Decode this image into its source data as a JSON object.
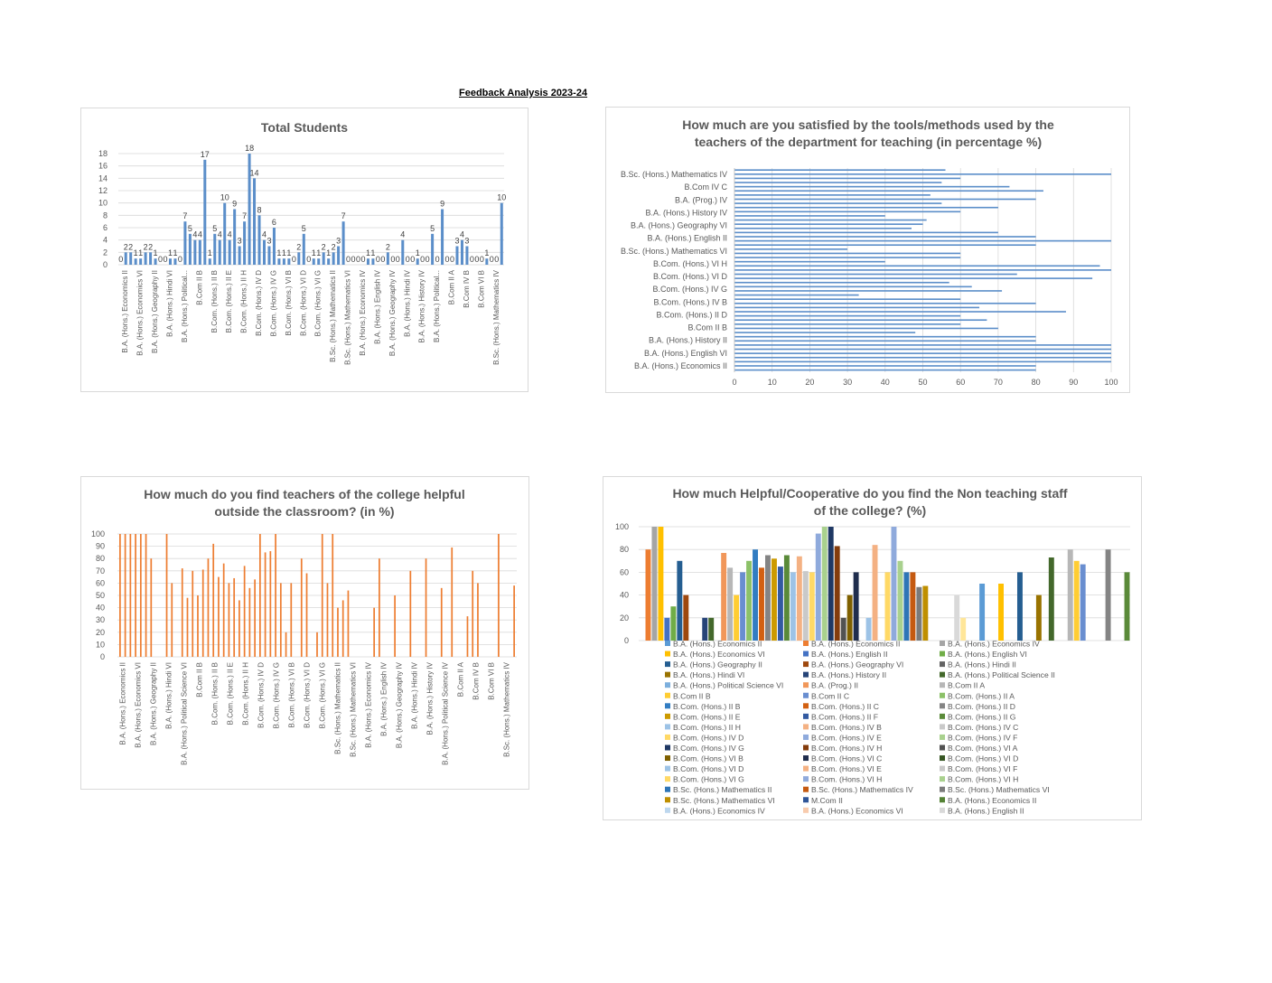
{
  "document_title": "Feedback Analysis 2023-24",
  "chart_data": [
    {
      "id": "total-students",
      "type": "bar",
      "title": "Total Students",
      "ylim": [
        0,
        18
      ],
      "yticks": [
        0,
        2,
        4,
        6,
        8,
        10,
        12,
        14,
        16,
        18
      ],
      "grid": true,
      "color": "#5b8ec9",
      "visible_category_labels": [
        "B.A. (Hons.) Economics II",
        "B.A. (Hons.) Economics VI",
        "B.A. (Hons.) Geography II",
        "B.A. (Hons.) Hindi VI",
        "B.A. (Hons.) Political...",
        "B.Com II B",
        "B.Com. (Hons.) II B",
        "B.Com. (Hons.) II E",
        "B.Com. (Hons.) II H",
        "B.Com. (Hons.) IV D",
        "B.Com. (Hons.) IV G",
        "B.Com. (Hons.) VI B",
        "B.Com. (Hons.) VI D",
        "B.Com. (Hons.) VI G",
        "B.Sc. (Hons.) Mathematics II",
        "B.Sc. (Hons.) Mathematics VI",
        "B.A. (Hons.) Economics IV",
        "B.A. (Hons.) English IV",
        "B.A. (Hons.) Geography IV",
        "B.A. (Hons.) Hindi IV",
        "B.A. (Hons.) History IV",
        "B.A. (Hons.) Political...",
        "B.Com II A",
        "B.Com IV B",
        "B.Com VI B",
        "B.Sc. (Hons.) Mathematics IV"
      ],
      "values": [
        0,
        2,
        2,
        1,
        1,
        2,
        2,
        1,
        0,
        0,
        1,
        1,
        0,
        7,
        5,
        4,
        4,
        17,
        1,
        5,
        4,
        10,
        4,
        9,
        3,
        7,
        18,
        14,
        8,
        4,
        3,
        6,
        1,
        1,
        1,
        0,
        2,
        5,
        0,
        1,
        1,
        2,
        1,
        2,
        3,
        7,
        0,
        0,
        0,
        0,
        1,
        1,
        0,
        0,
        2,
        0,
        0,
        4,
        0,
        0,
        1,
        0,
        0,
        5,
        0,
        9,
        0,
        0,
        3,
        4,
        3,
        0,
        0,
        0,
        1,
        0,
        0,
        10
      ]
    },
    {
      "id": "tools-methods",
      "type": "bar",
      "orientation": "horizontal",
      "title": "How much are you satisfied by the tools/methods used by the teachers of the department for teaching (in percentage %)",
      "title_lines": [
        "How much are you satisfied by the tools/methods used by the",
        "teachers of the department for teaching (in percentage %)"
      ],
      "xlim": [
        0,
        100
      ],
      "xticks": [
        0,
        10,
        20,
        30,
        40,
        50,
        60,
        70,
        80,
        90,
        100
      ],
      "grid": true,
      "color": "#5b8ec9",
      "visible_category_labels": [
        "B.Sc. (Hons.) Mathematics IV",
        "B.Com IV C",
        "B.A. (Prog.) IV",
        "B.A. (Hons.) History IV",
        "B.A. (Hons.) Geography VI",
        "B.A. (Hons.) English II",
        "B.Sc. (Hons.) Mathematics VI",
        "B.Com. (Hons.) VI H",
        "B.Com. (Hons.) VI D",
        "B.Com. (Hons.) IV G",
        "B.Com. (Hons.) IV B",
        "B.Com. (Hons.) II D",
        "B.Com II B",
        "B.A. (Hons.) History II",
        "B.A. (Hons.) English VI",
        "B.A. (Hons.) Economics II"
      ],
      "values_top_to_bottom": [
        56,
        100,
        60,
        55,
        73,
        82,
        52,
        80,
        55,
        70,
        60,
        40,
        51,
        50,
        47,
        70,
        80,
        100,
        80,
        30,
        60,
        60,
        40,
        97,
        100,
        75,
        95,
        57,
        63,
        71,
        33,
        60,
        80,
        65,
        88,
        60,
        67,
        60,
        70,
        48,
        80,
        80,
        100,
        100,
        100,
        100,
        100,
        80,
        80
      ]
    },
    {
      "id": "teachers-helpful",
      "type": "bar",
      "title": "How much do you find teachers of the college helpful outside the classroom? (in %)",
      "title_lines": [
        "How much do you find teachers of the college helpful",
        "outside the classroom?  (in %)"
      ],
      "ylim": [
        0,
        100
      ],
      "yticks": [
        0,
        10,
        20,
        30,
        40,
        50,
        60,
        70,
        80,
        90,
        100
      ],
      "grid": true,
      "color": "#ed7d31",
      "visible_category_labels": [
        "B.A. (Hons.) Economics II",
        "B.A. (Hons.) Economics VI",
        "B.A. (Hons.) Geography II",
        "B.A. (Hons.) Hindi VI",
        "B.A. (Hons.) Political Science VI",
        "B.Com II B",
        "B.Com. (Hons.) II B",
        "B.Com. (Hons.) II E",
        "B.Com. (Hons.) II H",
        "B.Com. (Hons.) IV D",
        "B.Com. (Hons.) IV G",
        "B.Com. (Hons.) VI B",
        "B.Com. (Hons.) VI D",
        "B.Com. (Hons.) VI G",
        "B.Sc. (Hons.) Mathematics II",
        "B.Sc. (Hons.) Mathematics VI",
        "B.A. (Hons.) Economics IV",
        "B.A. (Hons.) English IV",
        "B.A. (Hons.) Geography IV",
        "B.A. (Hons.) Hindi IV",
        "B.A. (Hons.) History IV",
        "B.A. (Hons.) Political Science IV",
        "B.Com II A",
        "B.Com IV B",
        "B.Com VI B",
        "B.Sc. (Hons.) Mathematics IV"
      ],
      "values": [
        100,
        100,
        100,
        100,
        100,
        100,
        80,
        0,
        0,
        100,
        60,
        0,
        72,
        48,
        70,
        50,
        71,
        80,
        92,
        65,
        76,
        60,
        64,
        46,
        74,
        56,
        63,
        100,
        85,
        86,
        100,
        60,
        20,
        60,
        0,
        80,
        68,
        0,
        20,
        100,
        60,
        100,
        40,
        46,
        54,
        0,
        0,
        0,
        0,
        40,
        80,
        0,
        0,
        50,
        0,
        0,
        70,
        0,
        0,
        80,
        0,
        0,
        56,
        0,
        89,
        0,
        0,
        33,
        70,
        60,
        0,
        0,
        0,
        100,
        0,
        0,
        58
      ]
    },
    {
      "id": "non-teaching-staff",
      "type": "bar",
      "title": "How much Helpful/Cooperative do you find the Non teaching staff of the college? (%)",
      "title_lines": [
        "How much Helpful/Cooperative do you find the Non teaching staff",
        "of the college? (%)"
      ],
      "ylim": [
        0,
        100
      ],
      "yticks": [
        0,
        20,
        40,
        60,
        80,
        100
      ],
      "grid": true,
      "legend_placement": "bottom",
      "series": [
        {
          "name": "B.A. (Hons.) Economics II",
          "color": "#5b9bd5",
          "value": 0
        },
        {
          "name": "B.A. (Hons.) Economics II",
          "color": "#ed7d31",
          "value": 80
        },
        {
          "name": "B.A. (Hons.) Economics IV",
          "color": "#a5a5a5",
          "value": 100
        },
        {
          "name": "B.A. (Hons.) Economics VI",
          "color": "#ffc000",
          "value": 100
        },
        {
          "name": "B.A. (Hons.) English II",
          "color": "#4472c4",
          "value": 20
        },
        {
          "name": "B.A. (Hons.) English VI",
          "color": "#70ad47",
          "value": 30
        },
        {
          "name": "B.A. (Hons.) Geography II",
          "color": "#255e91",
          "value": 70
        },
        {
          "name": "B.A. (Hons.) Geography VI",
          "color": "#9e480e",
          "value": 40
        },
        {
          "name": "B.A. (Hons.) Hindi II",
          "color": "#636363",
          "value": 0
        },
        {
          "name": "B.A. (Hons.) Hindi VI",
          "color": "#997300",
          "value": 0
        },
        {
          "name": "B.A. (Hons.) History II",
          "color": "#264478",
          "value": 20
        },
        {
          "name": "B.A. (Hons.) Political Science II",
          "color": "#43682b",
          "value": 20
        },
        {
          "name": "B.A. (Hons.) Political Science VI",
          "color": "#7cafdd",
          "value": 0
        },
        {
          "name": "B.A. (Prog.) II",
          "color": "#f1975a",
          "value": 77
        },
        {
          "name": "B.Com II A",
          "color": "#b7b7b7",
          "value": 64
        },
        {
          "name": "B.Com II B",
          "color": "#ffcd33",
          "value": 40
        },
        {
          "name": "B.Com II C",
          "color": "#698ed0",
          "value": 60
        },
        {
          "name": "B.Com. (Hons.) II A",
          "color": "#8cc168",
          "value": 70
        },
        {
          "name": "B.Com. (Hons.) II B",
          "color": "#327dc2",
          "value": 80
        },
        {
          "name": "B.Com. (Hons.) II C",
          "color": "#d26012",
          "value": 64
        },
        {
          "name": "B.Com. (Hons.) II D",
          "color": "#848484",
          "value": 75
        },
        {
          "name": "B.Com. (Hons.) II E",
          "color": "#cc9a00",
          "value": 72
        },
        {
          "name": "B.Com. (Hons.) II F",
          "color": "#335aa1",
          "value": 65
        },
        {
          "name": "B.Com. (Hons.) II G",
          "color": "#5a8a39",
          "value": 75
        },
        {
          "name": "B.Com. (Hons.) II H",
          "color": "#9dc3e6",
          "value": 60
        },
        {
          "name": "B.Com. (Hons.) IV B",
          "color": "#f4b183",
          "value": 74
        },
        {
          "name": "B.Com. (Hons.) IV C",
          "color": "#c9c9c9",
          "value": 61
        },
        {
          "name": "B.Com. (Hons.) IV D",
          "color": "#ffd966",
          "value": 60
        },
        {
          "name": "B.Com. (Hons.) IV E",
          "color": "#8faadc",
          "value": 94
        },
        {
          "name": "B.Com. (Hons.) IV F",
          "color": "#a9d18e",
          "value": 100
        },
        {
          "name": "B.Com. (Hons.) IV G",
          "color": "#1f3864",
          "value": 100
        },
        {
          "name": "B.Com. (Hons.) IV H",
          "color": "#843c0c",
          "value": 83
        },
        {
          "name": "B.Com. (Hons.) VI A",
          "color": "#525252",
          "value": 20
        },
        {
          "name": "B.Com. (Hons.) VI B",
          "color": "#7f6000",
          "value": 40
        },
        {
          "name": "B.Com. (Hons.) VI C",
          "color": "#1f2d4d",
          "value": 60
        },
        {
          "name": "B.Com. (Hons.) VI D",
          "color": "#375623",
          "value": 0
        },
        {
          "name": "B.Com. (Hons.) VI D",
          "color": "#9dc3e6",
          "value": 20
        },
        {
          "name": "B.Com. (Hons.) VI E",
          "color": "#f4b183",
          "value": 84
        },
        {
          "name": "B.Com. (Hons.) VI F",
          "color": "#c9c9c9",
          "value": 0
        },
        {
          "name": "B.Com. (Hons.) VI G",
          "color": "#ffd966",
          "value": 60
        },
        {
          "name": "B.Com. (Hons.) VI H",
          "color": "#8faadc",
          "value": 100
        },
        {
          "name": "B.Com. (Hons.) VI H",
          "color": "#a9d18e",
          "value": 70
        },
        {
          "name": "B.Sc. (Hons.) Mathematics II",
          "color": "#2e75b6",
          "value": 60
        },
        {
          "name": "B.Sc. (Hons.) Mathematics IV",
          "color": "#c55a11",
          "value": 60
        },
        {
          "name": "B.Sc. (Hons.) Mathematics VI",
          "color": "#7b7b7b",
          "value": 47
        },
        {
          "name": "B.Sc. (Hons.) Mathematics VI",
          "color": "#bf8f00",
          "value": 48
        },
        {
          "name": "M.Com II",
          "color": "#2f5597",
          "value": 0
        },
        {
          "name": "B.A. (Hons.) Economics II",
          "color": "#548235",
          "value": 0
        },
        {
          "name": "B.A. (Hons.) Economics IV",
          "color": "#bdd7ee",
          "value": 0
        },
        {
          "name": "B.A. (Hons.) Economics VI",
          "color": "#f8cbad",
          "value": 0
        },
        {
          "name": "B.A. (Hons.) English II",
          "color": "#d9d9d9",
          "value": 40
        },
        {
          "name": "",
          "color": "#ffe699",
          "value": 20
        },
        {
          "name": "",
          "color": "#b4c7e7",
          "value": 0
        },
        {
          "name": "",
          "color": "#c5e0b4",
          "value": 0
        },
        {
          "name": "",
          "color": "#5b9bd5",
          "value": 50
        },
        {
          "name": "",
          "color": "#ed7d31",
          "value": 0
        },
        {
          "name": "",
          "color": "#a5a5a5",
          "value": 0
        },
        {
          "name": "",
          "color": "#ffc000",
          "value": 50
        },
        {
          "name": "",
          "color": "#4472c4",
          "value": 0
        },
        {
          "name": "",
          "color": "#70ad47",
          "value": 0
        },
        {
          "name": "",
          "color": "#255e91",
          "value": 60
        },
        {
          "name": "",
          "color": "#9e480e",
          "value": 0
        },
        {
          "name": "",
          "color": "#636363",
          "value": 0
        },
        {
          "name": "",
          "color": "#997300",
          "value": 40
        },
        {
          "name": "",
          "color": "#264478",
          "value": 0
        },
        {
          "name": "",
          "color": "#43682b",
          "value": 73
        },
        {
          "name": "",
          "color": "#7cafdd",
          "value": 0
        },
        {
          "name": "",
          "color": "#f1975a",
          "value": 0
        },
        {
          "name": "",
          "color": "#b7b7b7",
          "value": 80
        },
        {
          "name": "",
          "color": "#ffcd33",
          "value": 70
        },
        {
          "name": "",
          "color": "#698ed0",
          "value": 67
        },
        {
          "name": "",
          "color": "#8cc168",
          "value": 0
        },
        {
          "name": "",
          "color": "#327dc2",
          "value": 0
        },
        {
          "name": "",
          "color": "#d26012",
          "value": 0
        },
        {
          "name": "",
          "color": "#848484",
          "value": 80
        },
        {
          "name": "",
          "color": "#cc9a00",
          "value": 0
        },
        {
          "name": "",
          "color": "#335aa1",
          "value": 0
        },
        {
          "name": "",
          "color": "#5a8a39",
          "value": 60
        }
      ]
    }
  ]
}
